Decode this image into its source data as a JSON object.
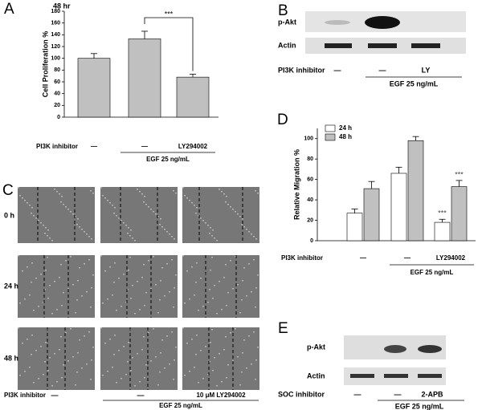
{
  "chart_data": [
    {
      "type": "bar",
      "panel": "A",
      "title": "48 hr",
      "ylabel": "Cell Proliferation %",
      "categories": [
        "—",
        "—",
        "LY294002"
      ],
      "row_label": "PI3K inhibitor",
      "group_label": "EGF 25 ng/mL",
      "values": [
        100,
        133,
        68
      ],
      "errors": [
        8,
        13,
        5
      ],
      "color": "#c0c0c0",
      "ylim": [
        0,
        180
      ],
      "yticks": [
        0,
        20,
        40,
        60,
        80,
        100,
        120,
        140,
        160,
        180
      ],
      "annotation": "***"
    },
    {
      "type": "bar",
      "panel": "D",
      "ylabel": "Relative Migration %",
      "categories": [
        "—",
        "—",
        "LY294002"
      ],
      "row_label": "PI3K inhibitor",
      "group_label": "EGF 25 ng/mL",
      "series": [
        {
          "name": "24 h",
          "color": "#ffffff",
          "values": [
            27,
            66,
            18
          ],
          "errors": [
            4,
            6,
            3
          ]
        },
        {
          "name": "48 h",
          "color": "#c0c0c0",
          "values": [
            51,
            98,
            53
          ],
          "errors": [
            7,
            4,
            6
          ]
        }
      ],
      "ylim": [
        0,
        110
      ],
      "yticks": [
        0,
        20,
        40,
        60,
        80,
        100
      ],
      "legend": "upper left",
      "annotations": [
        "***",
        "***"
      ]
    }
  ],
  "panels": {
    "B": {
      "label": "B",
      "rows": [
        "p-Akt",
        "Actin"
      ],
      "row_label": "PI3K inhibitor",
      "conditions": [
        "—",
        "—",
        "LY"
      ],
      "group_label": "EGF 25 ng/mL"
    },
    "C": {
      "label": "C",
      "times": [
        "0 h",
        "24 h",
        "48 h"
      ],
      "row_label": "PI3K inhibitor",
      "conditions": [
        "—",
        "—",
        "10 μM LY294002"
      ],
      "group_label": "EGF 25 ng/mL"
    },
    "E": {
      "label": "E",
      "rows": [
        "p-Akt",
        "Actin"
      ],
      "row_label": "SOC inhibitor",
      "conditions": [
        "—",
        "—",
        "2-APB"
      ],
      "group_label": "EGF 25 ng/mL"
    }
  }
}
